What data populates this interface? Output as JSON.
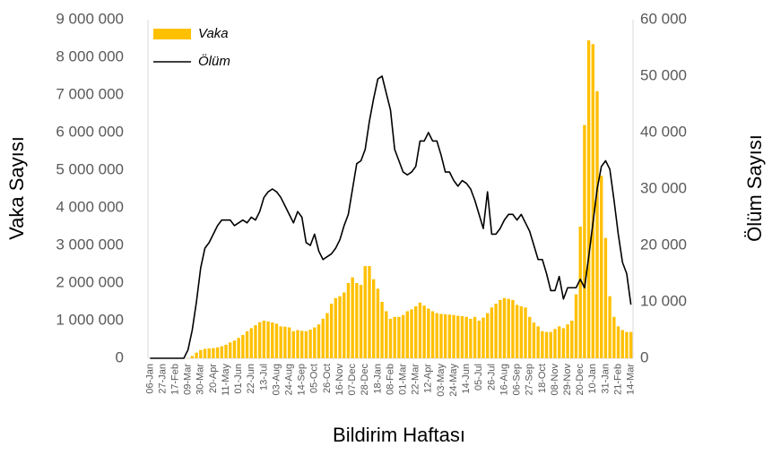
{
  "chart_data": {
    "type": "bar",
    "x_label": "Bildirim Haftası",
    "y_label": "Vaka Sayısı",
    "y2_label": "Ölüm Sayısı",
    "categories": [
      "06-Jan",
      null,
      null,
      "27-Jan",
      null,
      null,
      "17-Feb",
      null,
      null,
      "09-Mar",
      null,
      null,
      "30-Mar",
      null,
      null,
      "20-Apr",
      null,
      null,
      "11-May",
      null,
      null,
      "01-Jun",
      null,
      null,
      "22-Jun",
      null,
      null,
      "13-Jul",
      null,
      null,
      "03-Aug",
      null,
      null,
      "24-Aug",
      null,
      null,
      "14-Sep",
      null,
      null,
      "05-Oct",
      null,
      null,
      "26-Oct",
      null,
      null,
      "16-Nov",
      null,
      null,
      "07-Dec",
      null,
      null,
      "28-Dec",
      null,
      null,
      "18-Jan",
      null,
      null,
      "08-Feb",
      null,
      null,
      "01-Mar",
      null,
      null,
      "22-Mar",
      null,
      null,
      "12-Apr",
      null,
      null,
      "03-May",
      null,
      null,
      "24-May",
      null,
      null,
      "14-Jun",
      null,
      null,
      "05-Jul",
      null,
      null,
      "26-Jul",
      null,
      null,
      "16-Aug",
      null,
      null,
      "06-Sep",
      null,
      null,
      "27-Sep",
      null,
      null,
      "18-Oct",
      null,
      null,
      "08-Nov",
      null,
      null,
      "29-Nov",
      null,
      null,
      "20-Dec",
      null,
      null,
      "10-Jan",
      null,
      null,
      "31-Jan",
      null,
      null,
      "21-Feb",
      null,
      null,
      "14-Mar"
    ],
    "series": [
      {
        "name": "Vaka",
        "type": "bar",
        "color": "#ffc000",
        "values": [
          0,
          0,
          0,
          0,
          0,
          0,
          0,
          0,
          0,
          5000,
          60000,
          150000,
          220000,
          250000,
          260000,
          270000,
          290000,
          320000,
          360000,
          420000,
          470000,
          540000,
          620000,
          720000,
          800000,
          880000,
          960000,
          1000000,
          980000,
          950000,
          920000,
          850000,
          840000,
          820000,
          720000,
          750000,
          730000,
          720000,
          760000,
          820000,
          900000,
          1050000,
          1200000,
          1450000,
          1600000,
          1650000,
          1750000,
          2000000,
          2150000,
          2000000,
          1950000,
          2450000,
          2450000,
          2100000,
          1850000,
          1500000,
          1250000,
          1050000,
          1100000,
          1100000,
          1150000,
          1250000,
          1300000,
          1380000,
          1480000,
          1400000,
          1320000,
          1250000,
          1200000,
          1180000,
          1170000,
          1160000,
          1150000,
          1130000,
          1120000,
          1100000,
          1050000,
          1100000,
          1000000,
          1080000,
          1200000,
          1350000,
          1450000,
          1550000,
          1600000,
          1580000,
          1550000,
          1420000,
          1380000,
          1350000,
          1100000,
          950000,
          850000,
          720000,
          700000,
          700000,
          780000,
          850000,
          800000,
          900000,
          1000000,
          1700000,
          3500000,
          6200000,
          8450000,
          8350000,
          7100000,
          4850000,
          3200000,
          1650000,
          1100000,
          850000,
          750000,
          700000,
          700000
        ]
      },
      {
        "name": "Ölüm",
        "type": "line",
        "axis": "y2",
        "color": "#000000",
        "values": [
          0,
          0,
          0,
          0,
          0,
          0,
          0,
          0,
          0,
          1500,
          5000,
          10000,
          16000,
          19500,
          20500,
          22000,
          23500,
          24500,
          24500,
          24500,
          23500,
          24000,
          24500,
          24000,
          25000,
          24500,
          26000,
          28500,
          29500,
          30000,
          29500,
          28500,
          27000,
          25500,
          24000,
          26000,
          25000,
          20500,
          20000,
          22000,
          19000,
          17500,
          18000,
          18500,
          19500,
          21000,
          23500,
          25500,
          30000,
          34500,
          35000,
          37000,
          42000,
          46000,
          49500,
          50000,
          47000,
          44000,
          37000,
          35000,
          33000,
          32500,
          33000,
          34000,
          38500,
          38500,
          40000,
          38500,
          38500,
          36000,
          33000,
          33000,
          31500,
          30500,
          31500,
          31000,
          30000,
          28000,
          25500,
          23000,
          29500,
          22000,
          22000,
          23000,
          24500,
          25500,
          25500,
          24500,
          25500,
          24000,
          22500,
          20000,
          17500,
          17500,
          15000,
          12000,
          12000,
          14500,
          10500,
          12500,
          12500,
          12500,
          14000,
          12500,
          18000,
          24000,
          30000,
          34000,
          35000,
          33500,
          28000,
          22000,
          17000,
          15000,
          9500
        ]
      }
    ],
    "ylim": [
      0,
      9000000
    ],
    "yticks": [
      0,
      {
        "value": 1000000,
        "label": "1 000 000"
      },
      {
        "value": 2000000,
        "label": "2 000 000"
      },
      {
        "value": 3000000,
        "label": "3 000 000"
      },
      {
        "value": 4000000,
        "label": "4 000 000"
      },
      {
        "value": 5000000,
        "label": "5 000 000"
      },
      {
        "value": 6000000,
        "label": "6 000 000"
      },
      {
        "value": 7000000,
        "label": "7 000 000"
      },
      {
        "value": 8000000,
        "label": "8 000 000"
      },
      {
        "value": 9000000,
        "label": "9 000 000"
      }
    ],
    "y2lim": [
      0,
      60000
    ],
    "y2ticks": [
      0,
      {
        "value": 10000,
        "label": "10 000"
      },
      {
        "value": 20000,
        "label": "20 000"
      },
      {
        "value": 30000,
        "label": "30 000"
      },
      {
        "value": 40000,
        "label": "40 000"
      },
      {
        "value": 50000,
        "label": "50 000"
      },
      {
        "value": 60000,
        "label": "60 000"
      }
    ],
    "grid": false,
    "legend": "top-left"
  }
}
